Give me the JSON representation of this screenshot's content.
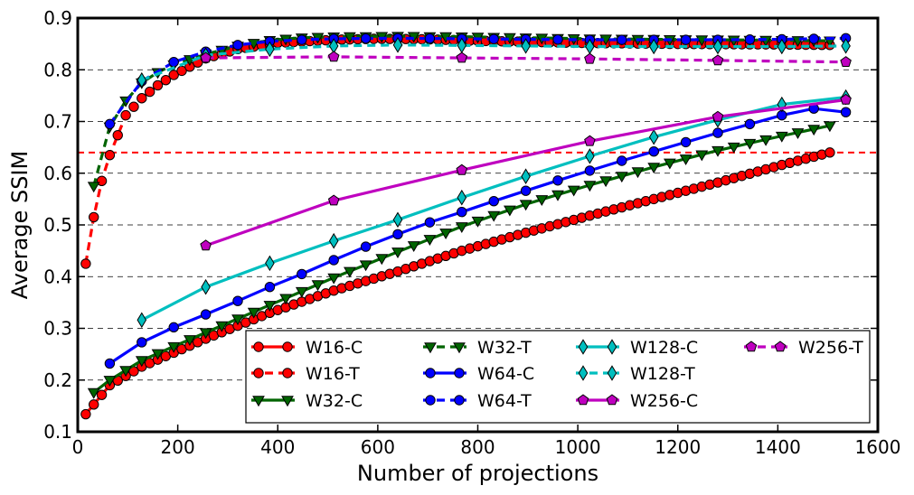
{
  "chart_data": {
    "type": "line",
    "xlabel": "Number of projections",
    "ylabel": "Average SSIM",
    "xlim": [
      0,
      1600
    ],
    "ylim": [
      0.1,
      0.9
    ],
    "xticks": [
      "0",
      "200",
      "400",
      "600",
      "800",
      "1000",
      "1200",
      "1400",
      "1600"
    ],
    "yticks": [
      "0.1",
      "0.2",
      "0.3",
      "0.4",
      "0.5",
      "0.6",
      "0.7",
      "0.8",
      "0.9"
    ],
    "grid": "horizontal dashed",
    "legend_position": "bottom-right",
    "reference_line": {
      "y": 0.64,
      "color": "#ff0000"
    },
    "series": [
      {
        "name": "W16-C",
        "color": "#ff0000",
        "marker": "circle",
        "dash": false,
        "step": 16,
        "curve": [
          [
            16,
            0.134
          ],
          [
            64,
            0.19
          ],
          [
            128,
            0.226
          ],
          [
            256,
            0.28
          ],
          [
            384,
            0.33
          ],
          [
            512,
            0.373
          ],
          [
            640,
            0.41
          ],
          [
            768,
            0.45
          ],
          [
            896,
            0.485
          ],
          [
            1024,
            0.518
          ],
          [
            1152,
            0.55
          ],
          [
            1280,
            0.582
          ],
          [
            1408,
            0.616
          ],
          [
            1504,
            0.64
          ]
        ]
      },
      {
        "name": "W16-T",
        "color": "#ff0000",
        "marker": "circle",
        "dash": true,
        "step": 16,
        "curve": [
          [
            16,
            0.425
          ],
          [
            32,
            0.515
          ],
          [
            48,
            0.585
          ],
          [
            64,
            0.635
          ],
          [
            96,
            0.712
          ],
          [
            128,
            0.745
          ],
          [
            160,
            0.77
          ],
          [
            192,
            0.79
          ],
          [
            256,
            0.822
          ],
          [
            320,
            0.84
          ],
          [
            400,
            0.852
          ],
          [
            512,
            0.858
          ],
          [
            600,
            0.86
          ],
          [
            700,
            0.859
          ],
          [
            800,
            0.856
          ],
          [
            900,
            0.854
          ],
          [
            1000,
            0.852
          ],
          [
            1200,
            0.85
          ],
          [
            1400,
            0.849
          ],
          [
            1504,
            0.848
          ]
        ]
      },
      {
        "name": "W32-C",
        "color": "#006400",
        "marker": "triangle-down",
        "dash": false,
        "step": 32,
        "curve": [
          [
            32,
            0.176
          ],
          [
            64,
            0.2
          ],
          [
            128,
            0.238
          ],
          [
            256,
            0.292
          ],
          [
            384,
            0.345
          ],
          [
            512,
            0.398
          ],
          [
            640,
            0.448
          ],
          [
            768,
            0.497
          ],
          [
            896,
            0.54
          ],
          [
            1024,
            0.577
          ],
          [
            1152,
            0.612
          ],
          [
            1280,
            0.644
          ],
          [
            1408,
            0.672
          ],
          [
            1504,
            0.692
          ]
        ]
      },
      {
        "name": "W32-T",
        "color": "#006400",
        "marker": "triangle-down",
        "dash": true,
        "step": 32,
        "curve": [
          [
            32,
            0.575
          ],
          [
            64,
            0.69
          ],
          [
            96,
            0.74
          ],
          [
            128,
            0.775
          ],
          [
            160,
            0.795
          ],
          [
            192,
            0.81
          ],
          [
            256,
            0.83
          ],
          [
            320,
            0.846
          ],
          [
            384,
            0.857
          ],
          [
            448,
            0.862
          ],
          [
            512,
            0.864
          ],
          [
            640,
            0.865
          ],
          [
            768,
            0.864
          ],
          [
            896,
            0.862
          ],
          [
            1024,
            0.86
          ],
          [
            1152,
            0.859
          ],
          [
            1280,
            0.858
          ],
          [
            1408,
            0.857
          ],
          [
            1504,
            0.856
          ]
        ]
      },
      {
        "name": "W64-C",
        "color": "#0000ff",
        "marker": "circle",
        "dash": false,
        "step": 64,
        "curve": [
          [
            64,
            0.232
          ],
          [
            128,
            0.273
          ],
          [
            192,
            0.302
          ],
          [
            256,
            0.327
          ],
          [
            320,
            0.353
          ],
          [
            384,
            0.38
          ],
          [
            448,
            0.405
          ],
          [
            512,
            0.432
          ],
          [
            576,
            0.458
          ],
          [
            640,
            0.482
          ],
          [
            704,
            0.505
          ],
          [
            768,
            0.525
          ],
          [
            832,
            0.546
          ],
          [
            896,
            0.566
          ],
          [
            960,
            0.586
          ],
          [
            1024,
            0.605
          ],
          [
            1088,
            0.624
          ],
          [
            1152,
            0.642
          ],
          [
            1216,
            0.66
          ],
          [
            1280,
            0.678
          ],
          [
            1344,
            0.695
          ],
          [
            1408,
            0.712
          ],
          [
            1472,
            0.725
          ],
          [
            1536,
            0.718
          ]
        ]
      },
      {
        "name": "W64-T",
        "color": "#0000ff",
        "marker": "circle",
        "dash": true,
        "step": 64,
        "curve": [
          [
            64,
            0.695
          ],
          [
            128,
            0.778
          ],
          [
            192,
            0.815
          ],
          [
            256,
            0.835
          ],
          [
            320,
            0.848
          ],
          [
            384,
            0.855
          ],
          [
            448,
            0.858
          ],
          [
            512,
            0.86
          ],
          [
            640,
            0.861
          ],
          [
            768,
            0.86
          ],
          [
            896,
            0.859
          ],
          [
            1024,
            0.858
          ],
          [
            1152,
            0.858
          ],
          [
            1280,
            0.858
          ],
          [
            1408,
            0.859
          ],
          [
            1536,
            0.861
          ]
        ]
      },
      {
        "name": "W128-C",
        "color": "#00bfbf",
        "marker": "diamond",
        "dash": false,
        "step": 128,
        "curve": [
          [
            128,
            0.316
          ],
          [
            256,
            0.38
          ],
          [
            384,
            0.426
          ],
          [
            512,
            0.469
          ],
          [
            640,
            0.51
          ],
          [
            768,
            0.553
          ],
          [
            896,
            0.594
          ],
          [
            1024,
            0.633
          ],
          [
            1152,
            0.67
          ],
          [
            1280,
            0.703
          ],
          [
            1408,
            0.733
          ],
          [
            1536,
            0.747
          ]
        ]
      },
      {
        "name": "W128-T",
        "color": "#00bfbf",
        "marker": "diamond",
        "dash": true,
        "step": 128,
        "curve": [
          [
            128,
            0.78
          ],
          [
            256,
            0.828
          ],
          [
            384,
            0.84
          ],
          [
            512,
            0.846
          ],
          [
            640,
            0.848
          ],
          [
            768,
            0.847
          ],
          [
            896,
            0.846
          ],
          [
            1024,
            0.845
          ],
          [
            1152,
            0.845
          ],
          [
            1280,
            0.845
          ],
          [
            1408,
            0.845
          ],
          [
            1536,
            0.846
          ]
        ]
      },
      {
        "name": "W256-C",
        "color": "#bf00bf",
        "marker": "pentagon",
        "dash": false,
        "step": 256,
        "curve": [
          [
            256,
            0.46
          ],
          [
            512,
            0.547
          ],
          [
            768,
            0.606
          ],
          [
            1024,
            0.662
          ],
          [
            1280,
            0.709
          ],
          [
            1536,
            0.742
          ]
        ]
      },
      {
        "name": "W256-T",
        "color": "#bf00bf",
        "marker": "pentagon",
        "dash": true,
        "step": 256,
        "curve": [
          [
            256,
            0.823
          ],
          [
            512,
            0.825
          ],
          [
            768,
            0.823
          ],
          [
            1024,
            0.821
          ],
          [
            1280,
            0.818
          ],
          [
            1536,
            0.815
          ]
        ]
      }
    ]
  }
}
